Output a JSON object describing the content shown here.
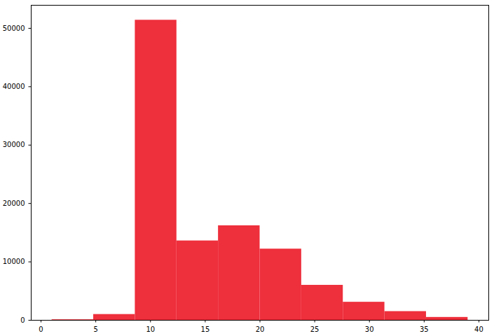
{
  "chart_data": {
    "type": "histogram",
    "bins": [
      1,
      4.8,
      8.6,
      12.4,
      16.2,
      20,
      23.8,
      27.6,
      31.4,
      35.2,
      39
    ],
    "values": [
      100,
      1000,
      51400,
      13600,
      16200,
      12200,
      6000,
      3100,
      1500,
      500
    ],
    "color": "#ee2f3c",
    "xlim": [
      -0.9,
      40.9
    ],
    "xticks": [
      0,
      5,
      10,
      15,
      20,
      25,
      30,
      35,
      40
    ],
    "ylim": [
      0,
      53950
    ],
    "yticks": [
      0,
      10000,
      20000,
      30000,
      40000,
      50000
    ],
    "grid": false
  }
}
